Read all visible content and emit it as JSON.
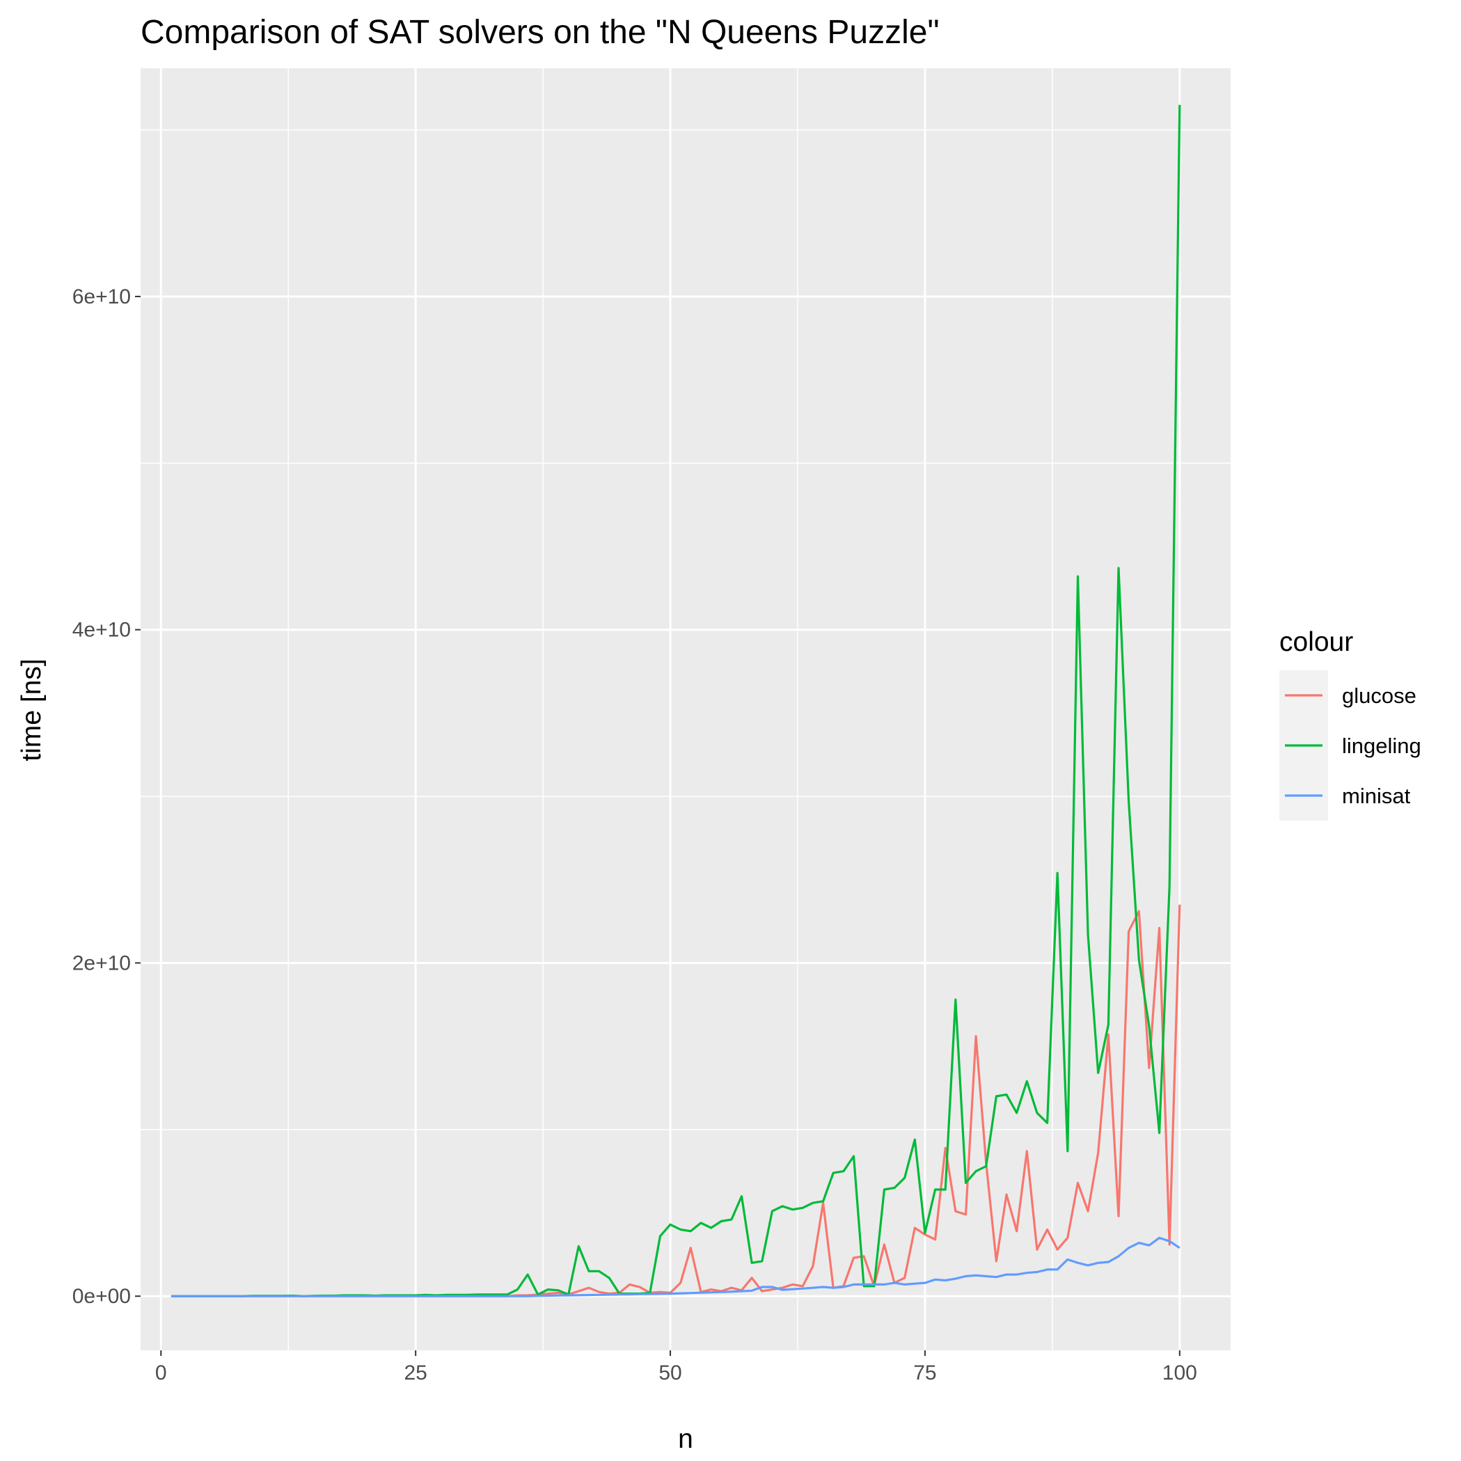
{
  "chart_data": {
    "type": "line",
    "title": "Comparison of SAT solvers on the \"N Queens Puzzle\"",
    "xlabel": "n",
    "ylabel": "time [ns]",
    "xlim": [
      -2,
      105
    ],
    "ylim": [
      -3250000000.0,
      73700000000.0
    ],
    "x_ticks": [
      0,
      25,
      50,
      75,
      100
    ],
    "x_tick_labels": [
      "0",
      "25",
      "50",
      "75",
      "100"
    ],
    "y_ticks": [
      0,
      20000000000,
      40000000000,
      60000000000
    ],
    "y_tick_labels": [
      "0e+00",
      "2e+10",
      "4e+10",
      "6e+10"
    ],
    "x_minor_ticks": [
      12.5,
      37.5,
      62.5,
      87.5
    ],
    "y_minor_ticks": [
      10000000000,
      30000000000,
      50000000000,
      70000000000
    ],
    "grid": true,
    "background": "#ebebeb",
    "legend_title": "colour",
    "legend_position": "right",
    "series": [
      {
        "name": "glucose",
        "color": "#F8766D",
        "x": [
          1,
          2,
          3,
          4,
          5,
          6,
          7,
          8,
          9,
          10,
          11,
          12,
          13,
          14,
          15,
          16,
          17,
          18,
          19,
          20,
          21,
          22,
          23,
          24,
          25,
          26,
          27,
          28,
          29,
          30,
          31,
          32,
          33,
          34,
          35,
          36,
          37,
          38,
          39,
          40,
          41,
          42,
          43,
          44,
          45,
          46,
          47,
          48,
          49,
          50,
          51,
          52,
          53,
          54,
          55,
          56,
          57,
          58,
          59,
          60,
          61,
          62,
          63,
          64,
          65,
          66,
          67,
          68,
          69,
          70,
          71,
          72,
          73,
          74,
          75,
          76,
          77,
          78,
          79,
          80,
          81,
          82,
          83,
          84,
          85,
          86,
          87,
          88,
          89,
          90,
          91,
          92,
          93,
          94,
          95,
          96,
          97,
          98,
          99,
          100
        ],
        "y": [
          0,
          0,
          0,
          0,
          0,
          0,
          0,
          0,
          0,
          0,
          0,
          0,
          0,
          0,
          0,
          0,
          0,
          0,
          0,
          0,
          0,
          0,
          0,
          0,
          0,
          0,
          0,
          0,
          0,
          0,
          0,
          0,
          0,
          0,
          50000000.0,
          50000000.0,
          100000000.0,
          150000000.0,
          200000000.0,
          100000000.0,
          300000000.0,
          500000000.0,
          250000000.0,
          150000000.0,
          200000000.0,
          700000000.0,
          550000000.0,
          200000000.0,
          250000000.0,
          200000000.0,
          800000000.0,
          2900000000.0,
          250000000.0,
          400000000.0,
          300000000.0,
          500000000.0,
          350000000.0,
          1100000000.0,
          300000000.0,
          400000000.0,
          500000000.0,
          700000000.0,
          600000000.0,
          1800000000.0,
          5600000000.0,
          500000000.0,
          600000000.0,
          2300000000.0,
          2400000000.0,
          600000000.0,
          3100000000.0,
          800000000.0,
          1100000000.0,
          4100000000.0,
          3700000000.0,
          3400000000.0,
          8900000000.0,
          5100000000.0,
          4900000000.0,
          15600000000.0,
          8000000000.0,
          2100000000.0,
          6100000000.0,
          3900000000.0,
          8700000000.0,
          2800000000.0,
          4000000000.0,
          2800000000.0,
          3500000000.0,
          6800000000.0,
          5100000000.0,
          8600000000.0,
          15700000000.0,
          4800000000.0,
          21900000000.0,
          23100000000.0,
          13700000000.0,
          22100000000.0,
          3100000000.0,
          23500000000.0
        ]
      },
      {
        "name": "lingeling",
        "color": "#00BA38",
        "x": [
          1,
          2,
          3,
          4,
          5,
          6,
          7,
          8,
          9,
          10,
          11,
          12,
          13,
          14,
          15,
          16,
          17,
          18,
          19,
          20,
          21,
          22,
          23,
          24,
          25,
          26,
          27,
          28,
          29,
          30,
          31,
          32,
          33,
          34,
          35,
          36,
          37,
          38,
          39,
          40,
          41,
          42,
          43,
          44,
          45,
          46,
          47,
          48,
          49,
          50,
          51,
          52,
          53,
          54,
          55,
          56,
          57,
          58,
          59,
          60,
          61,
          62,
          63,
          64,
          65,
          66,
          67,
          68,
          69,
          70,
          71,
          72,
          73,
          74,
          75,
          76,
          77,
          78,
          79,
          80,
          81,
          82,
          83,
          84,
          85,
          86,
          87,
          88,
          89,
          90,
          91,
          92,
          93,
          94,
          95,
          96,
          97,
          98,
          99,
          100
        ],
        "y": [
          0,
          0,
          0,
          0,
          0,
          0,
          0,
          0,
          20000000.0,
          20000000.0,
          20000000.0,
          20000000.0,
          30000000.0,
          0,
          20000000.0,
          30000000.0,
          30000000.0,
          50000000.0,
          50000000.0,
          50000000.0,
          30000000.0,
          50000000.0,
          50000000.0,
          50000000.0,
          50000000.0,
          80000000.0,
          50000000.0,
          80000000.0,
          80000000.0,
          80000000.0,
          100000000.0,
          100000000.0,
          100000000.0,
          100000000.0,
          400000000.0,
          1300000000.0,
          100000000.0,
          400000000.0,
          350000000.0,
          100000000.0,
          3000000000.0,
          1500000000.0,
          1500000000.0,
          1100000000.0,
          150000000.0,
          150000000.0,
          150000000.0,
          200000000.0,
          3600000000.0,
          4300000000.0,
          4000000000.0,
          3900000000.0,
          4400000000.0,
          4100000000.0,
          4500000000.0,
          4600000000.0,
          6000000000.0,
          2000000000.0,
          2100000000.0,
          5100000000.0,
          5400000000.0,
          5200000000.0,
          5300000000.0,
          5600000000.0,
          5700000000.0,
          7400000000.0,
          7500000000.0,
          8400000000.0,
          600000000.0,
          600000000.0,
          6400000000.0,
          6500000000.0,
          7100000000.0,
          9400000000.0,
          3800000000.0,
          6400000000.0,
          6400000000.0,
          17800000000.0,
          6800000000.0,
          7500000000.0,
          7800000000.0,
          12000000000.0,
          12100000000.0,
          11000000000.0,
          12900000000.0,
          11000000000.0,
          10400000000.0,
          25400000000.0,
          8700000000.0,
          43200000000.0,
          21700000000.0,
          13400000000.0,
          16300000000.0,
          43700000000.0,
          29700000000.0,
          20200000000.0,
          16200000000.0,
          9800000000.0,
          24600000000.0,
          71500000000.0
        ]
      },
      {
        "name": "minisat",
        "color": "#619CFF",
        "x": [
          1,
          2,
          3,
          4,
          5,
          6,
          7,
          8,
          9,
          10,
          11,
          12,
          13,
          14,
          15,
          16,
          17,
          18,
          19,
          20,
          21,
          22,
          23,
          24,
          25,
          26,
          27,
          28,
          29,
          30,
          31,
          32,
          33,
          34,
          35,
          36,
          37,
          38,
          39,
          40,
          41,
          42,
          43,
          44,
          45,
          46,
          47,
          48,
          49,
          50,
          51,
          52,
          53,
          54,
          55,
          56,
          57,
          58,
          59,
          60,
          61,
          62,
          63,
          64,
          65,
          66,
          67,
          68,
          69,
          70,
          71,
          72,
          73,
          74,
          75,
          76,
          77,
          78,
          79,
          80,
          81,
          82,
          83,
          84,
          85,
          86,
          87,
          88,
          89,
          90,
          91,
          92,
          93,
          94,
          95,
          96,
          97,
          98,
          99,
          100
        ],
        "y": [
          0,
          0,
          0,
          0,
          0,
          0,
          0,
          0,
          0,
          0,
          0,
          0,
          0,
          0,
          0,
          0,
          0,
          0,
          0,
          0,
          0,
          0,
          0,
          0,
          0,
          0,
          0,
          0,
          0,
          0,
          0,
          0,
          0,
          0,
          0,
          0,
          20000000.0,
          30000000.0,
          40000000.0,
          50000000.0,
          60000000.0,
          70000000.0,
          80000000.0,
          90000000.0,
          100000000.0,
          110000000.0,
          120000000.0,
          130000000.0,
          140000000.0,
          150000000.0,
          170000000.0,
          190000000.0,
          210000000.0,
          230000000.0,
          250000000.0,
          270000000.0,
          300000000.0,
          330000000.0,
          550000000.0,
          550000000.0,
          380000000.0,
          420000000.0,
          460000000.0,
          500000000.0,
          550000000.0,
          500000000.0,
          550000000.0,
          700000000.0,
          700000000.0,
          700000000.0,
          700000000.0,
          800000000.0,
          700000000.0,
          750000000.0,
          800000000.0,
          1000000000.0,
          950000000.0,
          1050000000.0,
          1200000000.0,
          1250000000.0,
          1200000000.0,
          1150000000.0,
          1300000000.0,
          1300000000.0,
          1400000000.0,
          1450000000.0,
          1600000000.0,
          1600000000.0,
          2200000000.0,
          2000000000.0,
          1850000000.0,
          2000000000.0,
          2050000000.0,
          2400000000.0,
          2900000000.0,
          3200000000.0,
          3050000000.0,
          3500000000.0,
          3300000000.0,
          2900000000.0
        ]
      }
    ]
  }
}
